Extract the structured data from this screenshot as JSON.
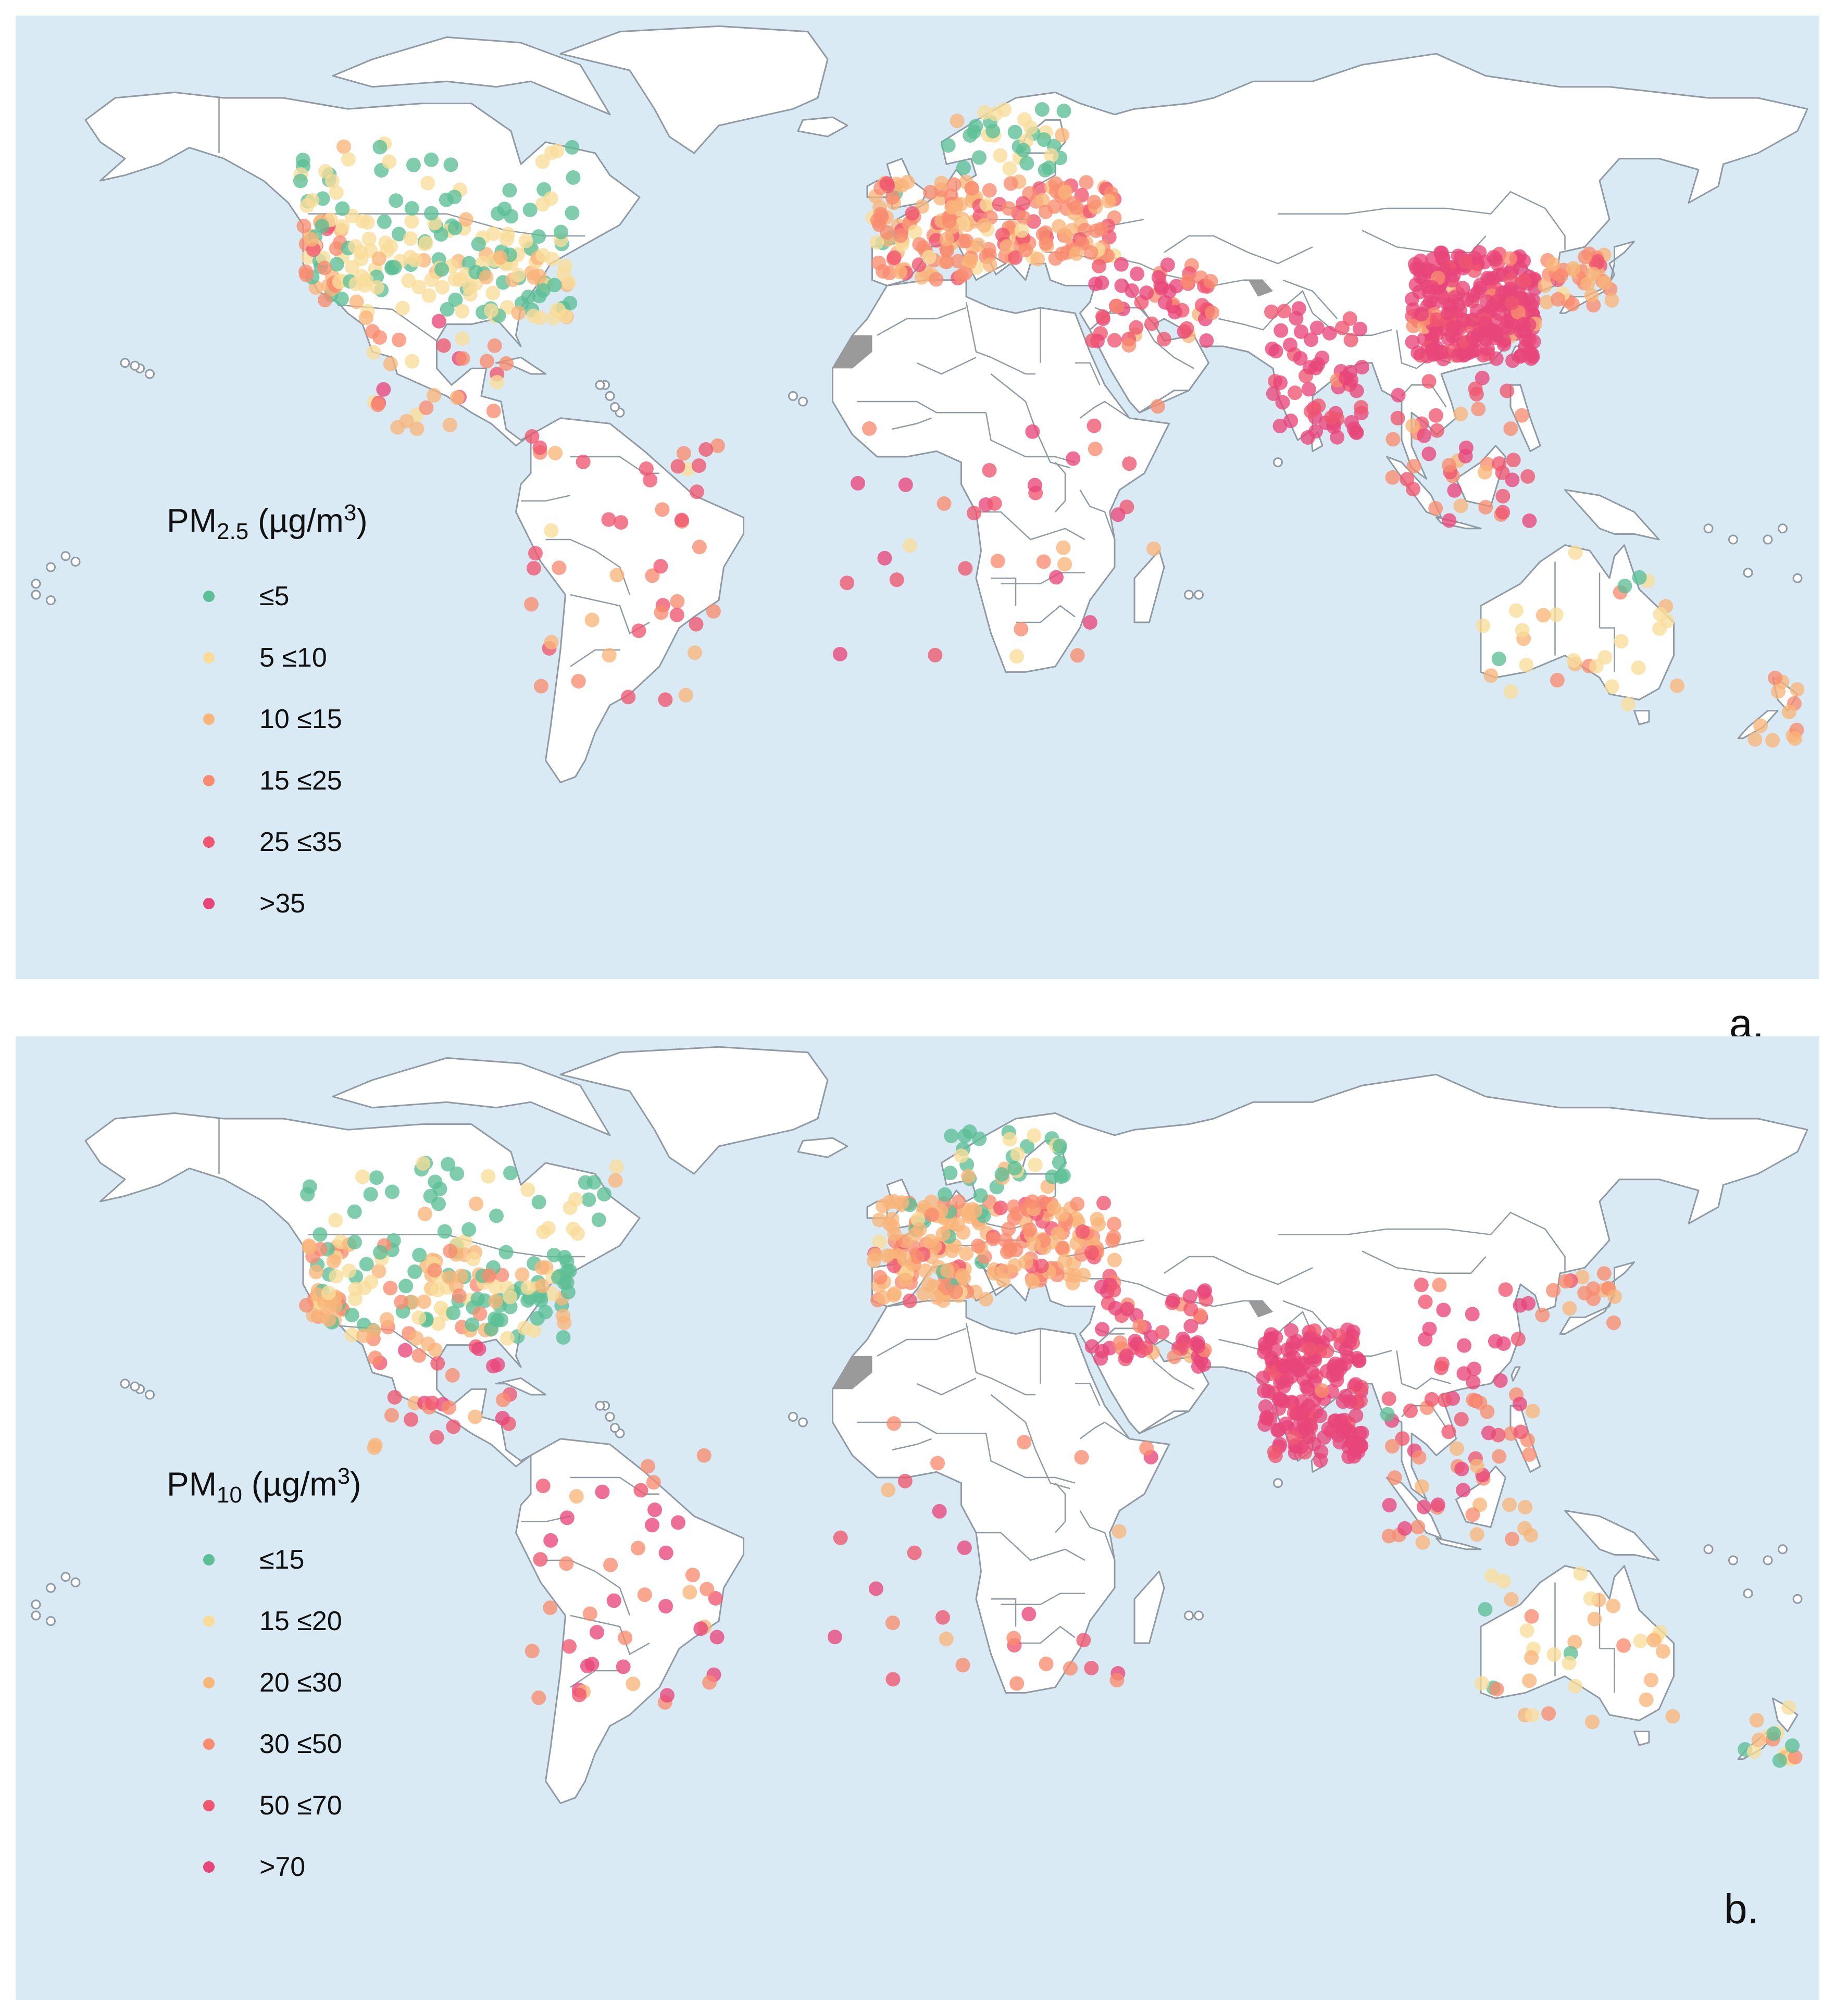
{
  "panels": [
    {
      "id": "a",
      "letter": "a.",
      "legend": {
        "title_main": "PM",
        "title_sub": "2.5",
        "title_unit_pre": " (µg/m",
        "title_unit_sup": "3",
        "title_unit_post": ")",
        "items": [
          {
            "label": "≤5",
            "color": "#5cbf96"
          },
          {
            "label": "5 ≤10",
            "color": "#f9dc9a"
          },
          {
            "label": "10 ≤15",
            "color": "#f9b57a"
          },
          {
            "label": "15 ≤25",
            "color": "#f98c70"
          },
          {
            "label": "25 ≤35",
            "color": "#f05670"
          },
          {
            "label": ">35",
            "color": "#e8457a"
          }
        ]
      },
      "clusters": [
        {
          "region": "us-west",
          "lon": [
            -124,
            -116
          ],
          "lat": [
            33,
            48
          ],
          "n": 40,
          "mix": [
            0.15,
            0.2,
            0.3,
            0.3,
            0.05,
            0
          ]
        },
        {
          "region": "us-central",
          "lon": [
            -115,
            -90
          ],
          "lat": [
            30,
            48
          ],
          "n": 70,
          "mix": [
            0.25,
            0.55,
            0.15,
            0.05,
            0,
            0
          ]
        },
        {
          "region": "us-east",
          "lon": [
            -90,
            -70
          ],
          "lat": [
            30,
            46
          ],
          "n": 70,
          "mix": [
            0.3,
            0.55,
            0.15,
            0,
            0,
            0
          ]
        },
        {
          "region": "canada",
          "lon": [
            -125,
            -60
          ],
          "lat": [
            48,
            62
          ],
          "n": 45,
          "mix": [
            0.45,
            0.45,
            0.1,
            0,
            0,
            0
          ]
        },
        {
          "region": "mexico-central-america",
          "lon": [
            -110,
            -82
          ],
          "lat": [
            10,
            30
          ],
          "n": 30,
          "mix": [
            0,
            0.1,
            0.2,
            0.3,
            0.3,
            0.1
          ]
        },
        {
          "region": "south-america",
          "lon": [
            -78,
            -40
          ],
          "lat": [
            -40,
            10
          ],
          "n": 45,
          "mix": [
            0,
            0.05,
            0.2,
            0.4,
            0.3,
            0.05
          ]
        },
        {
          "region": "europe-west",
          "lon": [
            -9,
            15
          ],
          "lat": [
            37,
            55
          ],
          "n": 120,
          "mix": [
            0.02,
            0.08,
            0.4,
            0.4,
            0.1,
            0
          ]
        },
        {
          "region": "europe-east",
          "lon": [
            15,
            40
          ],
          "lat": [
            40,
            55
          ],
          "n": 90,
          "mix": [
            0,
            0.05,
            0.25,
            0.45,
            0.25,
            0
          ]
        },
        {
          "region": "scandinavia",
          "lon": [
            5,
            30
          ],
          "lat": [
            56,
            68
          ],
          "n": 35,
          "mix": [
            0.6,
            0.3,
            0.1,
            0,
            0,
            0
          ]
        },
        {
          "region": "middle-east",
          "lon": [
            35,
            60
          ],
          "lat": [
            25,
            40
          ],
          "n": 55,
          "mix": [
            0,
            0,
            0.05,
            0.2,
            0.3,
            0.45
          ]
        },
        {
          "region": "india",
          "lon": [
            70,
            90
          ],
          "lat": [
            8,
            32
          ],
          "n": 60,
          "mix": [
            0,
            0,
            0,
            0.05,
            0.2,
            0.75
          ]
        },
        {
          "region": "china",
          "lon": [
            100,
            125
          ],
          "lat": [
            22,
            42
          ],
          "n": 260,
          "mix": [
            0,
            0,
            0.02,
            0.05,
            0.2,
            0.73
          ]
        },
        {
          "region": "japan-korea",
          "lon": [
            126,
            142
          ],
          "lat": [
            32,
            42
          ],
          "n": 35,
          "mix": [
            0,
            0.05,
            0.35,
            0.5,
            0.1,
            0
          ]
        },
        {
          "region": "southeast-asia",
          "lon": [
            95,
            125
          ],
          "lat": [
            -8,
            20
          ],
          "n": 45,
          "mix": [
            0,
            0,
            0.1,
            0.35,
            0.35,
            0.2
          ]
        },
        {
          "region": "africa",
          "lon": [
            -17,
            50
          ],
          "lat": [
            -35,
            15
          ],
          "n": 35,
          "mix": [
            0,
            0.05,
            0.15,
            0.3,
            0.3,
            0.2
          ]
        },
        {
          "region": "australia",
          "lon": [
            114,
            154
          ],
          "lat": [
            -40,
            -12
          ],
          "n": 30,
          "mix": [
            0.1,
            0.5,
            0.3,
            0.1,
            0,
            0
          ]
        },
        {
          "region": "new-zealand",
          "lon": [
            167,
            178
          ],
          "lat": [
            -47,
            -35
          ],
          "n": 12,
          "mix": [
            0,
            0.1,
            0.6,
            0.3,
            0,
            0
          ]
        }
      ]
    },
    {
      "id": "b",
      "letter": "b.",
      "legend": {
        "title_main": "PM",
        "title_sub": "10",
        "title_unit_pre": " (µg/m",
        "title_unit_sup": "3",
        "title_unit_post": ")",
        "items": [
          {
            "label": "≤15",
            "color": "#5cbf96"
          },
          {
            "label": "15 ≤20",
            "color": "#f9dc9a"
          },
          {
            "label": "20 ≤30",
            "color": "#f9b57a"
          },
          {
            "label": "30 ≤50",
            "color": "#f98c70"
          },
          {
            "label": "50 ≤70",
            "color": "#f05670"
          },
          {
            "label": ">70",
            "color": "#e8457a"
          }
        ]
      },
      "clusters": [
        {
          "region": "us-west",
          "lon": [
            -124,
            -116
          ],
          "lat": [
            33,
            48
          ],
          "n": 40,
          "mix": [
            0.2,
            0.2,
            0.3,
            0.25,
            0.05,
            0
          ]
        },
        {
          "region": "us-central",
          "lon": [
            -115,
            -90
          ],
          "lat": [
            30,
            48
          ],
          "n": 70,
          "mix": [
            0.35,
            0.25,
            0.25,
            0.15,
            0,
            0
          ]
        },
        {
          "region": "us-east",
          "lon": [
            -90,
            -70
          ],
          "lat": [
            30,
            46
          ],
          "n": 70,
          "mix": [
            0.5,
            0.2,
            0.2,
            0.1,
            0,
            0
          ]
        },
        {
          "region": "canada",
          "lon": [
            -125,
            -60
          ],
          "lat": [
            48,
            62
          ],
          "n": 40,
          "mix": [
            0.55,
            0.35,
            0.1,
            0,
            0,
            0
          ]
        },
        {
          "region": "mexico-central-america",
          "lon": [
            -110,
            -82
          ],
          "lat": [
            10,
            30
          ],
          "n": 30,
          "mix": [
            0,
            0,
            0.2,
            0.3,
            0.3,
            0.2
          ]
        },
        {
          "region": "south-america",
          "lon": [
            -78,
            -40
          ],
          "lat": [
            -40,
            10
          ],
          "n": 45,
          "mix": [
            0,
            0,
            0.1,
            0.3,
            0.35,
            0.25
          ]
        },
        {
          "region": "europe-west",
          "lon": [
            -9,
            15
          ],
          "lat": [
            37,
            55
          ],
          "n": 130,
          "mix": [
            0.05,
            0.05,
            0.55,
            0.3,
            0.05,
            0
          ]
        },
        {
          "region": "europe-east",
          "lon": [
            15,
            40
          ],
          "lat": [
            40,
            55
          ],
          "n": 100,
          "mix": [
            0,
            0.05,
            0.35,
            0.4,
            0.2,
            0
          ]
        },
        {
          "region": "scandinavia",
          "lon": [
            5,
            30
          ],
          "lat": [
            56,
            68
          ],
          "n": 35,
          "mix": [
            0.7,
            0.2,
            0.1,
            0,
            0,
            0
          ]
        },
        {
          "region": "middle-east",
          "lon": [
            35,
            60
          ],
          "lat": [
            25,
            40
          ],
          "n": 55,
          "mix": [
            0,
            0,
            0.05,
            0.15,
            0.3,
            0.5
          ]
        },
        {
          "region": "india",
          "lon": [
            70,
            90
          ],
          "lat": [
            8,
            32
          ],
          "n": 180,
          "mix": [
            0,
            0,
            0,
            0.02,
            0.18,
            0.8
          ]
        },
        {
          "region": "china",
          "lon": [
            100,
            125
          ],
          "lat": [
            22,
            42
          ],
          "n": 20,
          "mix": [
            0,
            0,
            0,
            0.1,
            0.3,
            0.6
          ]
        },
        {
          "region": "japan-korea",
          "lon": [
            126,
            142
          ],
          "lat": [
            32,
            42
          ],
          "n": 15,
          "mix": [
            0,
            0,
            0.3,
            0.5,
            0.2,
            0
          ]
        },
        {
          "region": "southeast-asia",
          "lon": [
            95,
            125
          ],
          "lat": [
            -8,
            20
          ],
          "n": 55,
          "mix": [
            0.02,
            0.05,
            0.15,
            0.3,
            0.3,
            0.18
          ]
        },
        {
          "region": "africa",
          "lon": [
            -17,
            50
          ],
          "lat": [
            -35,
            15
          ],
          "n": 30,
          "mix": [
            0.05,
            0,
            0.1,
            0.3,
            0.3,
            0.25
          ]
        },
        {
          "region": "australia",
          "lon": [
            114,
            154
          ],
          "lat": [
            -40,
            -12
          ],
          "n": 35,
          "mix": [
            0.1,
            0.3,
            0.4,
            0.2,
            0,
            0
          ]
        },
        {
          "region": "new-zealand",
          "lon": [
            167,
            178
          ],
          "lat": [
            -47,
            -35
          ],
          "n": 15,
          "mix": [
            0.4,
            0.2,
            0.3,
            0.1,
            0,
            0
          ]
        }
      ]
    }
  ]
}
